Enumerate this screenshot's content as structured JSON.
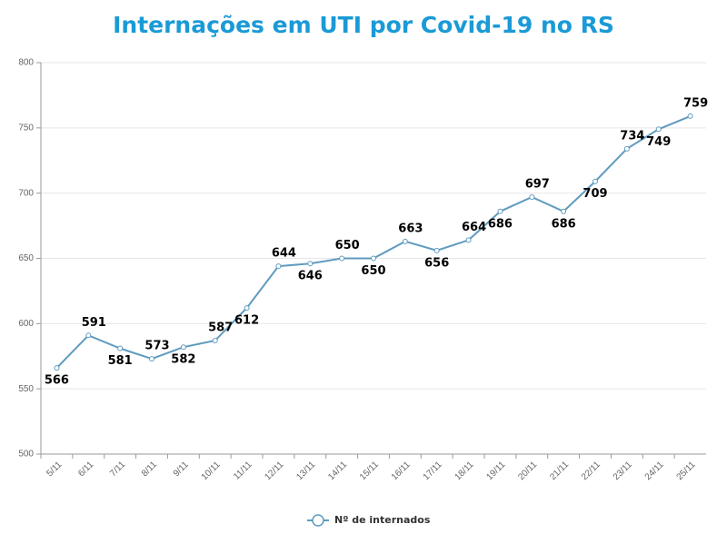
{
  "chart_data": {
    "type": "line",
    "title": "Internações em UTI por Covid-19 no RS",
    "categories": [
      "5/11",
      "6/11",
      "7/11",
      "8/11",
      "9/11",
      "10/11",
      "11/11",
      "12/11",
      "13/11",
      "14/11",
      "15/11",
      "16/11",
      "17/11",
      "18/11",
      "19/11",
      "20/11",
      "21/11",
      "22/11",
      "23/11",
      "24/11",
      "25/11"
    ],
    "series": [
      {
        "name": "Nº de internados",
        "color": "#5f9bbf",
        "values": [
          566,
          591,
          581,
          573,
          582,
          587,
          612,
          644,
          646,
          650,
          650,
          663,
          656,
          664,
          686,
          697,
          686,
          709,
          734,
          749,
          759
        ]
      }
    ],
    "ylim": [
      500,
      800
    ],
    "yticks": [
      500,
      550,
      600,
      650,
      700,
      750,
      800
    ],
    "grid": true,
    "legend": "bottom"
  }
}
